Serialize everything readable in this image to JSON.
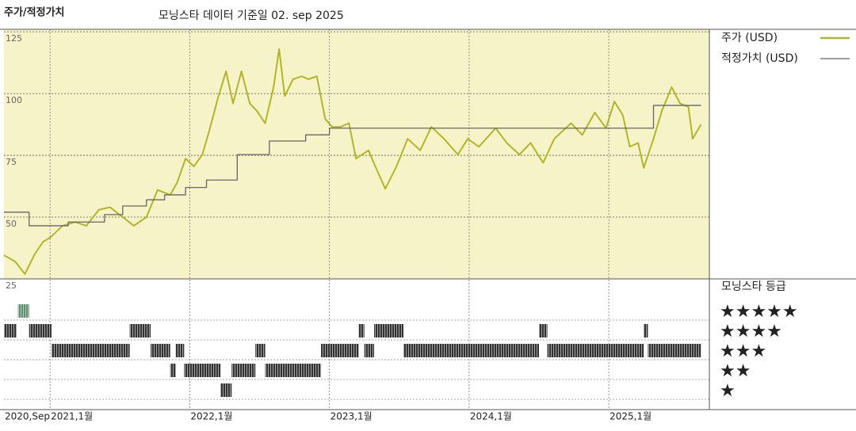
{
  "chart_data": [
    {
      "type": "line",
      "title": "주가/적정가치",
      "subtitle": "모닝스타 데이터 기준일 02. sep 2025",
      "xlim": [
        2020.67,
        2025.72
      ],
      "ylim": [
        25,
        126
      ],
      "yticks": [
        25,
        50,
        75,
        100,
        125
      ],
      "grid": true,
      "background": "#f7f3c9",
      "series": [
        {
          "name": "주가 (USD)",
          "color": "#b2b52a",
          "x": [
            2020.67,
            2020.75,
            2020.82,
            2020.89,
            2020.95,
            2021.0,
            2021.09,
            2021.18,
            2021.26,
            2021.35,
            2021.43,
            2021.52,
            2021.6,
            2021.69,
            2021.77,
            2021.86,
            2021.91,
            2021.97,
            2022.03,
            2022.09,
            2022.14,
            2022.2,
            2022.26,
            2022.31,
            2022.37,
            2022.43,
            2022.48,
            2022.54,
            2022.6,
            2022.64,
            2022.68,
            2022.74,
            2022.8,
            2022.85,
            2022.91,
            2022.97,
            2023.02,
            2023.08,
            2023.14,
            2023.19,
            2023.28,
            2023.34,
            2023.4,
            2023.48,
            2023.56,
            2023.65,
            2023.73,
            2023.82,
            2023.92,
            2023.99,
            2024.07,
            2024.19,
            2024.27,
            2024.36,
            2024.44,
            2024.53,
            2024.61,
            2024.73,
            2024.81,
            2024.9,
            2024.98,
            2025.04,
            2025.1,
            2025.15,
            2025.21,
            2025.25,
            2025.32,
            2025.38,
            2025.45,
            2025.51,
            2025.57,
            2025.6,
            2025.66
          ],
          "values": [
            34.6,
            32,
            27,
            35,
            40,
            41.7,
            46.5,
            48,
            46.5,
            53,
            54,
            50,
            46.5,
            50,
            61,
            59,
            64,
            73.7,
            70.5,
            75.3,
            85,
            97.8,
            109,
            96,
            109,
            96,
            93,
            88,
            102.6,
            118,
            99,
            105.8,
            107,
            105.8,
            107,
            89.7,
            86.5,
            86.5,
            88,
            73.7,
            77,
            69,
            61.5,
            70.5,
            81.7,
            77,
            86.5,
            81.7,
            75.3,
            81.7,
            78.5,
            86,
            80,
            75.3,
            80,
            72,
            81.7,
            88,
            83.3,
            92.3,
            86,
            96.8,
            91.3,
            78.5,
            80,
            69.9,
            81.7,
            93,
            102.6,
            96,
            94.6,
            81.7,
            87.5
          ]
        },
        {
          "name": "적정가치 (USD)",
          "color": "#666666",
          "x": [
            2020.67,
            2020.85,
            2020.85,
            2021.13,
            2021.13,
            2021.39,
            2021.39,
            2021.52,
            2021.52,
            2021.69,
            2021.69,
            2021.82,
            2021.82,
            2021.97,
            2021.97,
            2022.12,
            2022.12,
            2022.34,
            2022.34,
            2022.57,
            2022.57,
            2022.83,
            2022.83,
            2023,
            2023,
            2025.32,
            2025.32,
            2025.66
          ],
          "values": [
            52,
            52,
            46.5,
            46.5,
            48,
            48,
            51,
            51,
            54.5,
            54.5,
            57,
            57,
            59,
            59,
            62,
            62,
            65,
            65,
            75.3,
            75.3,
            80.8,
            80.8,
            83.3,
            83.3,
            86,
            86,
            95.2,
            95.2
          ]
        }
      ]
    },
    {
      "type": "timeline",
      "title": "모닝스타 등급",
      "xlim": [
        2020.67,
        2025.72
      ],
      "xticks": [
        {
          "value": 2020.67,
          "label": "2020,Sep"
        },
        {
          "value": 2021,
          "label": "2021,1월"
        },
        {
          "value": 2022,
          "label": "2022,1월"
        },
        {
          "value": 2023,
          "label": "2023,1월"
        },
        {
          "value": 2024,
          "label": "2024,1월"
        },
        {
          "value": 2025,
          "label": "2025,1월"
        }
      ],
      "yticks": [
        {
          "value": 5,
          "label": "★★★★★"
        },
        {
          "value": 4,
          "label": "★★★★"
        },
        {
          "value": 3,
          "label": "★★★"
        },
        {
          "value": 2,
          "label": "★★"
        },
        {
          "value": 1,
          "label": "★"
        }
      ],
      "starts": [
        2020.67,
        2020.77,
        2020.85,
        2021.01,
        2021.57,
        2021.72,
        2021.86,
        2021.9,
        2021.96,
        2022.22,
        2022.3,
        2022.47,
        2022.54,
        2022.94,
        2023.21,
        2023.25,
        2023.32,
        2023.53,
        2024.5,
        2024.56,
        2025.25,
        2025.28
      ],
      "ends": [
        2020.76,
        2020.85,
        2021.01,
        2021.57,
        2021.72,
        2021.86,
        2021.9,
        2021.96,
        2022.22,
        2022.3,
        2022.47,
        2022.54,
        2022.94,
        2023.21,
        2023.25,
        2023.32,
        2023.53,
        2024.5,
        2024.56,
        2025.25,
        2025.28,
        2025.66
      ],
      "values": [
        4,
        5,
        4,
        3,
        4,
        3,
        2,
        3,
        2,
        1,
        2,
        3,
        2,
        3,
        4,
        3,
        4,
        3,
        4,
        3,
        4,
        3
      ],
      "colors": [
        "#333333",
        "#5f8f6f",
        "#333333",
        "#333333",
        "#333333",
        "#333333",
        "#333333",
        "#333333",
        "#333333",
        "#333333",
        "#333333",
        "#333333",
        "#333333",
        "#333333",
        "#333333",
        "#333333",
        "#333333",
        "#333333",
        "#333333",
        "#333333",
        "#333333",
        "#333333"
      ]
    }
  ]
}
